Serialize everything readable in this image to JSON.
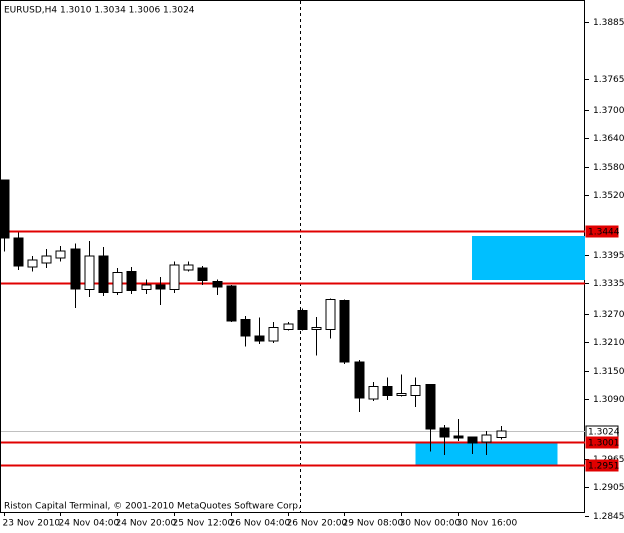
{
  "chart_data": {
    "type": "candlestick",
    "title": "EURUSD,H4  1.3010 1.3034 1.3006 1.3024",
    "footer": "Riston Capital Terminal, © 2001-2010 MetaQuotes Software Corp.",
    "categories": [
      "23 Nov 2010",
      null,
      null,
      null,
      "24 Nov 04:00",
      null,
      null,
      null,
      "24 Nov 20:00",
      null,
      null,
      null,
      "25 Nov 12:00",
      null,
      null,
      null,
      "26 Nov 04:00",
      null,
      null,
      null,
      "26 Nov 20:00",
      null,
      null,
      null,
      "29 Nov 08:00",
      null,
      null,
      null,
      "30 Nov 00:00",
      null,
      null,
      null,
      "30 Nov 16:00",
      null,
      null,
      null
    ],
    "open": [
      1.3552,
      1.343,
      1.3369,
      1.3377,
      1.3388,
      1.3407,
      1.3321,
      1.3392,
      1.3315,
      1.3359,
      1.3321,
      1.3331,
      1.3321,
      1.3363,
      1.3367,
      1.3338,
      1.3329,
      1.3258,
      1.3224,
      1.3213,
      1.3237,
      1.3277,
      1.3237,
      1.3237,
      1.3298,
      1.3169,
      1.3091,
      1.3117,
      1.3098,
      1.3098,
      1.3121,
      1.303,
      1.3013,
      1.3011,
      1.3,
      1.301
    ],
    "high": [
      1.3552,
      1.3441,
      1.3392,
      1.3407,
      1.3413,
      1.3418,
      1.3424,
      1.3411,
      1.3367,
      1.3369,
      1.3342,
      1.3348,
      1.338,
      1.338,
      1.3371,
      1.3342,
      1.3331,
      1.3266,
      1.3262,
      1.3253,
      1.3253,
      1.3281,
      1.3264,
      1.3302,
      1.33,
      1.3173,
      1.3127,
      1.3136,
      1.3142,
      1.3136,
      1.3121,
      1.3036,
      1.3049,
      1.3011,
      1.3024,
      1.3034
    ],
    "low": [
      1.3401,
      1.3363,
      1.3359,
      1.3367,
      1.338,
      1.3283,
      1.3306,
      1.3308,
      1.331,
      1.3312,
      1.3312,
      1.3289,
      1.3314,
      1.3359,
      1.3331,
      1.331,
      1.3253,
      1.3201,
      1.3207,
      1.3209,
      1.3235,
      1.3235,
      1.3182,
      1.3218,
      1.3165,
      1.3064,
      1.3087,
      1.3089,
      1.3096,
      1.3074,
      1.298,
      1.2973,
      1.3003,
      1.2975,
      1.2973,
      1.3006
    ],
    "close": [
      1.343,
      1.3371,
      1.3384,
      1.3392,
      1.3403,
      1.3323,
      1.3392,
      1.3315,
      1.3357,
      1.3319,
      1.3331,
      1.3323,
      1.3373,
      1.3373,
      1.334,
      1.3327,
      1.3255,
      1.3224,
      1.3213,
      1.3241,
      1.3249,
      1.3237,
      1.3241,
      1.33,
      1.3169,
      1.3093,
      1.3117,
      1.3098,
      1.3102,
      1.3119,
      1.3028,
      1.3011,
      1.3009,
      1.2998,
      1.3015,
      1.3024
    ],
    "up_color": "#ffffff",
    "down_color": "#000000",
    "ylim": [
      1.2853,
      1.3931
    ],
    "yticks": [
      {
        "value": 1.3885,
        "label": "1.3885"
      },
      {
        "value": 1.3765,
        "label": "1.3765"
      },
      {
        "value": 1.37,
        "label": "1.3700"
      },
      {
        "value": 1.364,
        "label": "1.3640"
      },
      {
        "value": 1.358,
        "label": "1.3580"
      },
      {
        "value": 1.352,
        "label": "1.3520"
      },
      {
        "value": 1.3395,
        "label": "1.3395"
      },
      {
        "value": 1.3335,
        "label": "1.3335"
      },
      {
        "value": 1.327,
        "label": "1.3270"
      },
      {
        "value": 1.321,
        "label": "1.3210"
      },
      {
        "value": 1.315,
        "label": "1.3150"
      },
      {
        "value": 1.309,
        "label": "1.3090"
      },
      {
        "value": 1.2965,
        "label": "1.2965"
      },
      {
        "value": 1.2905,
        "label": "1.2905"
      },
      {
        "value": 1.2845,
        "label": "1.2845"
      }
    ],
    "levels": [
      {
        "value": 1.3444,
        "label": "1.3444",
        "color": "#e00000",
        "text_color": "#ffffff"
      },
      {
        "value": 1.3335,
        "color": "#e00000"
      },
      {
        "value": 1.3024,
        "label": "1.3024",
        "color": "#c0c0c0",
        "text_color": "#000000"
      },
      {
        "value": 1.3001,
        "label": "1.3001",
        "color": "#e00000",
        "text_color": "#ffffff"
      },
      {
        "value": 1.2951,
        "label": "1.2951",
        "color": "#e00000",
        "text_color": "#ffffff"
      }
    ],
    "zones": [
      {
        "ylim": [
          1.3341,
          1.3434
        ],
        "xlim": [
          33,
          41
        ],
        "color": "#00bfff"
      },
      {
        "ylim": [
          1.2953,
          1.3001
        ],
        "xlim": [
          29,
          39
        ],
        "color": "#00bfff"
      }
    ]
  }
}
